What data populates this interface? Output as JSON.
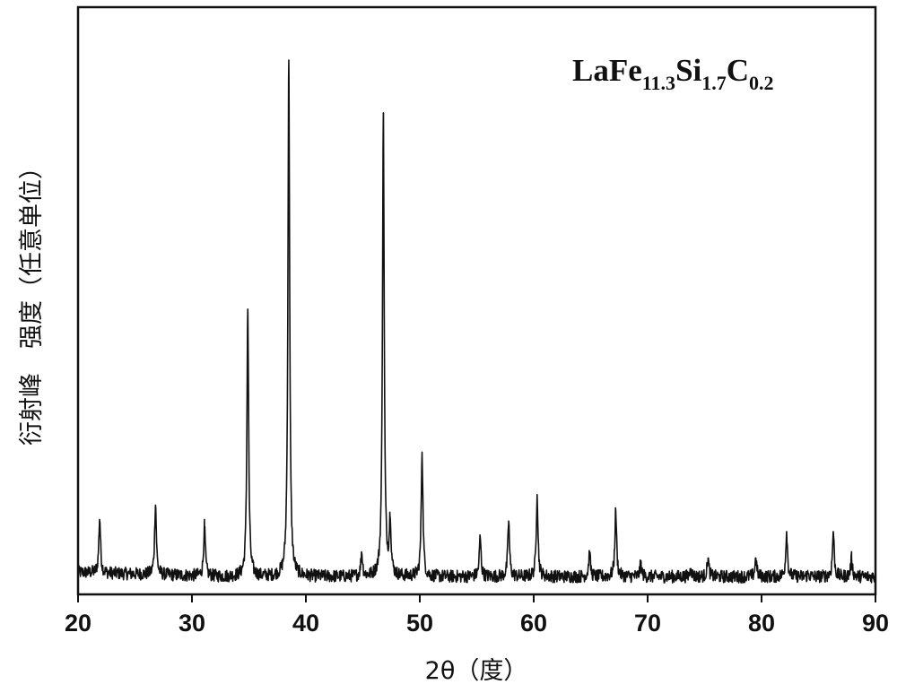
{
  "chart_data": {
    "type": "line",
    "title": "",
    "xlabel": "2θ（度）",
    "ylabel": "衍射峰　强度（任意单位）",
    "xlim": [
      20,
      90
    ],
    "ylim": [
      0,
      100
    ],
    "x_ticks": [
      20,
      30,
      40,
      50,
      60,
      70,
      80,
      90
    ],
    "x_tick_labels": [
      "20",
      "30",
      "40",
      "50",
      "60",
      "70",
      "80",
      "90"
    ],
    "y_ticks_shown": false,
    "grid": false,
    "legend": {
      "placement": "top-right",
      "parts": [
        {
          "text": "LaFe",
          "sub": "11.3"
        },
        {
          "text": "Si",
          "sub": "1.7"
        },
        {
          "text": "C",
          "sub": "0.2"
        }
      ]
    },
    "baseline": 2.5,
    "noise_amplitude": 1.2,
    "peak_width_deg": 0.09,
    "series": [
      {
        "peaks": [
          {
            "x": 21.9,
            "y": 13
          },
          {
            "x": 26.8,
            "y": 16
          },
          {
            "x": 31.1,
            "y": 12
          },
          {
            "x": 34.9,
            "y": 53
          },
          {
            "x": 38.5,
            "y": 100
          },
          {
            "x": 44.9,
            "y": 7
          },
          {
            "x": 46.8,
            "y": 90
          },
          {
            "x": 47.4,
            "y": 13
          },
          {
            "x": 50.2,
            "y": 26
          },
          {
            "x": 55.3,
            "y": 10
          },
          {
            "x": 57.8,
            "y": 13
          },
          {
            "x": 60.3,
            "y": 18
          },
          {
            "x": 64.9,
            "y": 7
          },
          {
            "x": 67.2,
            "y": 15
          },
          {
            "x": 69.4,
            "y": 5
          },
          {
            "x": 73.8,
            "y": 4
          },
          {
            "x": 75.3,
            "y": 6
          },
          {
            "x": 79.5,
            "y": 6
          },
          {
            "x": 82.2,
            "y": 11
          },
          {
            "x": 84.1,
            "y": 3
          },
          {
            "x": 86.3,
            "y": 11
          },
          {
            "x": 87.9,
            "y": 6
          }
        ]
      }
    ]
  }
}
